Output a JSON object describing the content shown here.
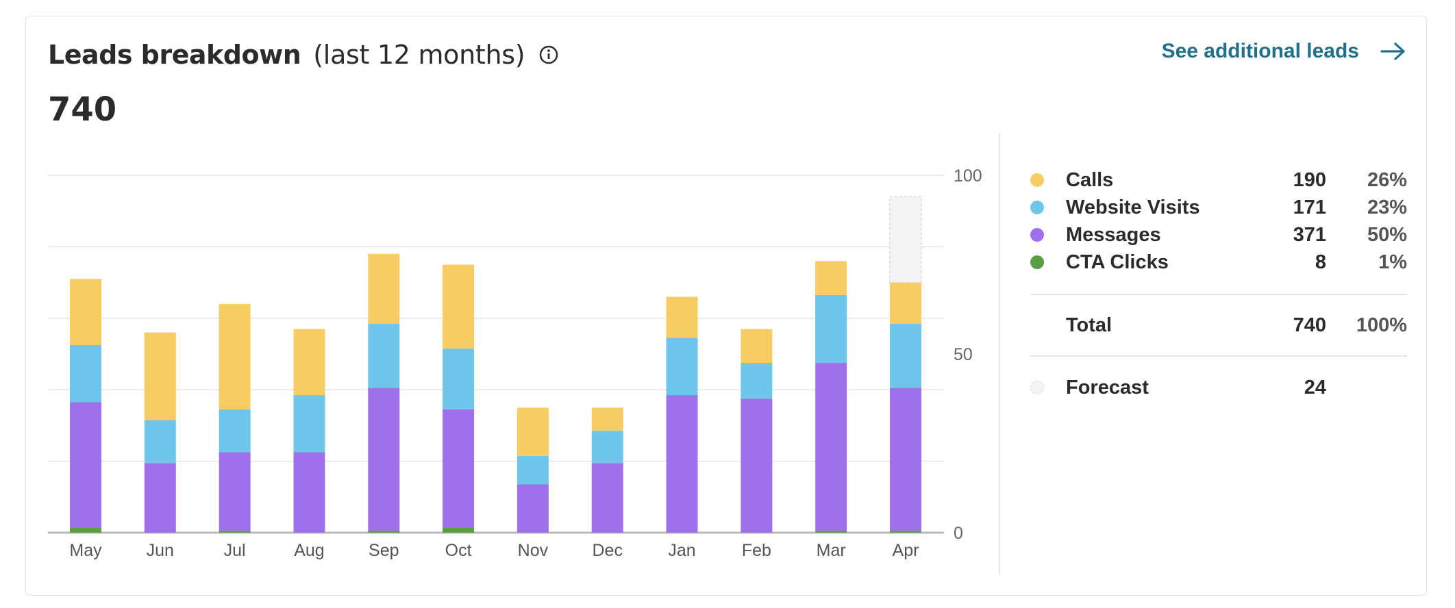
{
  "header": {
    "title": "Leads breakdown",
    "subtitle": "(last 12 months)",
    "total": "740",
    "link_label": "See additional leads"
  },
  "legend": {
    "items": [
      {
        "name": "Calls",
        "value": "190",
        "pct": "26%",
        "color": "#f7cd63"
      },
      {
        "name": "Website Visits",
        "value": "171",
        "pct": "23%",
        "color": "#6ec6eb"
      },
      {
        "name": "Messages",
        "value": "371",
        "pct": "50%",
        "color": "#a070ec"
      },
      {
        "name": "CTA Clicks",
        "value": "8",
        "pct": "1%",
        "color": "#5a9e42"
      }
    ],
    "total": {
      "name": "Total",
      "value": "740",
      "pct": "100%"
    },
    "forecast": {
      "name": "Forecast",
      "value": "24"
    }
  },
  "chart_data": {
    "type": "bar",
    "stacked": true,
    "categories": [
      "May",
      "Jun",
      "Jul",
      "Aug",
      "Sep",
      "Oct",
      "Nov",
      "Dec",
      "Jan",
      "Feb",
      "Mar",
      "Apr"
    ],
    "series": [
      {
        "name": "CTA Clicks",
        "color": "#5a9e42",
        "values": [
          1.5,
          0,
          0.5,
          0,
          0.5,
          1.5,
          0,
          0,
          0,
          0,
          0.5,
          0.5
        ]
      },
      {
        "name": "Messages",
        "color": "#a070ec",
        "values": [
          35,
          19.5,
          22,
          22.5,
          40,
          33,
          13.5,
          19.5,
          38.5,
          37.5,
          47,
          40
        ]
      },
      {
        "name": "Website Visits",
        "color": "#6ec6eb",
        "values": [
          16,
          12,
          12,
          16,
          18,
          17,
          8,
          9,
          16,
          10,
          19,
          18
        ]
      },
      {
        "name": "Calls",
        "color": "#f7cd63",
        "values": [
          18.5,
          24.5,
          29.5,
          18.5,
          19.5,
          23.5,
          13.5,
          6.5,
          11.5,
          9.5,
          9.5,
          11.5
        ]
      }
    ],
    "forecast": {
      "category": "Apr",
      "value": 24
    },
    "yticks": [
      "0",
      "50",
      "100"
    ],
    "ylim": [
      0,
      100
    ],
    "grid": true
  }
}
